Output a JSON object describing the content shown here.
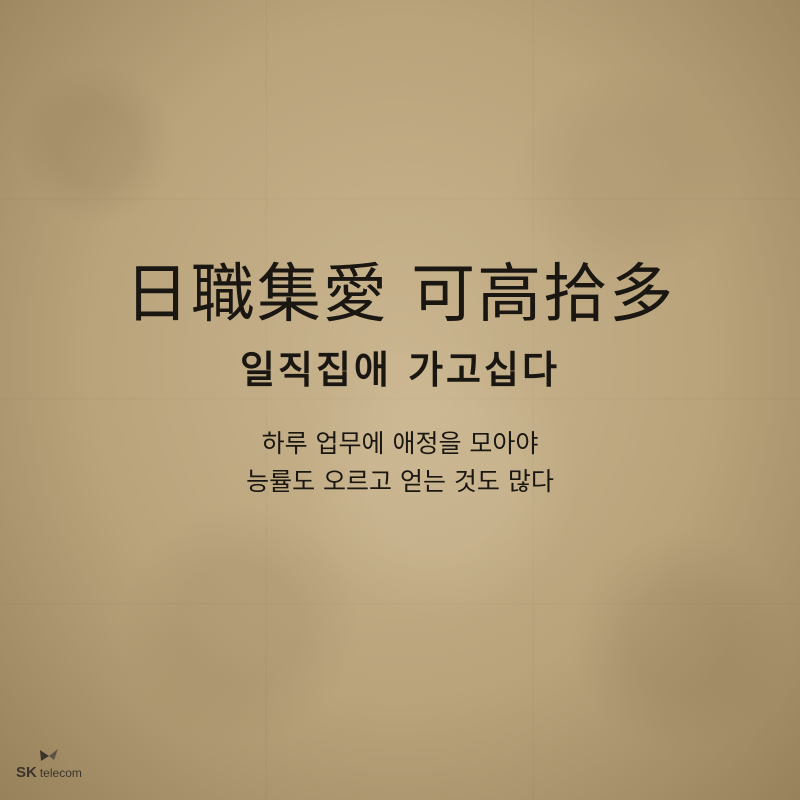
{
  "hanja_title": "日職集愛  可高拾多",
  "korean_title": "일직집애 가고십다",
  "subtitle_lines": [
    "하루 업무에 애정을 모아야",
    "능률도 오르고 얻는 것도 많다"
  ],
  "logo": {
    "brand": "SK",
    "suffix": "telecom",
    "icon": "butterfly-logo-icon"
  },
  "colors": {
    "background": "#b8a27a",
    "text": "#1a1612"
  }
}
